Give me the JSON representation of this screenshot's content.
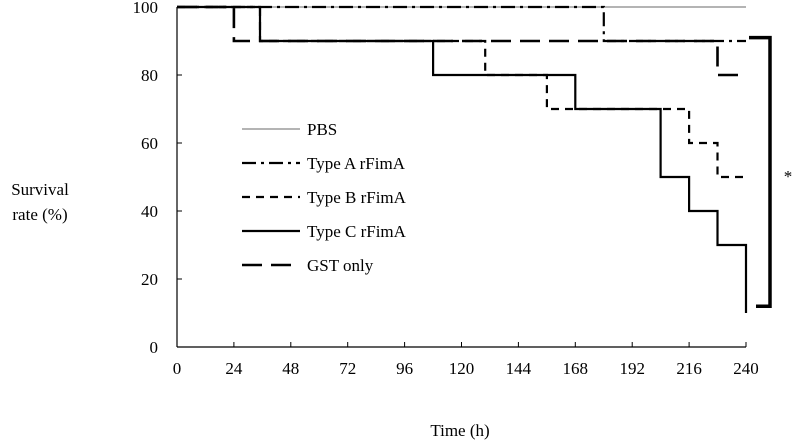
{
  "chart_data": {
    "type": "line",
    "title": "",
    "xlabel": "Time (h)",
    "ylabel_lines": [
      "Survival",
      "rate (%)"
    ],
    "xlim": [
      0,
      240
    ],
    "ylim": [
      0,
      100
    ],
    "xticks": [
      0,
      24,
      48,
      72,
      96,
      120,
      144,
      168,
      192,
      216,
      240
    ],
    "yticks": [
      0,
      20,
      40,
      60,
      80,
      100
    ],
    "grid": false,
    "legend_position": "center-left",
    "series": [
      {
        "name": "PBS",
        "style": "solid-thin",
        "color": "#888888",
        "x": [
          0,
          240
        ],
        "y": [
          100,
          100
        ]
      },
      {
        "name": "Type A rFimA",
        "style": "dash-dot",
        "color": "#000000",
        "x": [
          0,
          180,
          180,
          240
        ],
        "y": [
          100,
          100,
          90,
          90
        ]
      },
      {
        "name": "Type B rFimA",
        "style": "dashed-short",
        "color": "#000000",
        "x": [
          0,
          35,
          35,
          130,
          130,
          156,
          156,
          168,
          168,
          216,
          216,
          228,
          228,
          240
        ],
        "y": [
          100,
          100,
          90,
          90,
          80,
          80,
          70,
          70,
          70,
          70,
          60,
          60,
          50,
          50
        ]
      },
      {
        "name": "Type C rFimA",
        "style": "solid-thick",
        "color": "#000000",
        "x": [
          0,
          35,
          35,
          108,
          108,
          168,
          168,
          204,
          204,
          216,
          216,
          228,
          228,
          240,
          240
        ],
        "y": [
          100,
          100,
          90,
          90,
          80,
          80,
          70,
          70,
          50,
          50,
          40,
          40,
          30,
          30,
          10
        ]
      },
      {
        "name": "GST only",
        "style": "dashed-long",
        "color": "#000000",
        "x": [
          0,
          24,
          24,
          228,
          228,
          240
        ],
        "y": [
          100,
          100,
          90,
          90,
          80,
          80
        ]
      }
    ],
    "annotations": [
      {
        "type": "significance-bracket",
        "text": "*",
        "y_range": [
          12,
          91
        ]
      }
    ]
  }
}
